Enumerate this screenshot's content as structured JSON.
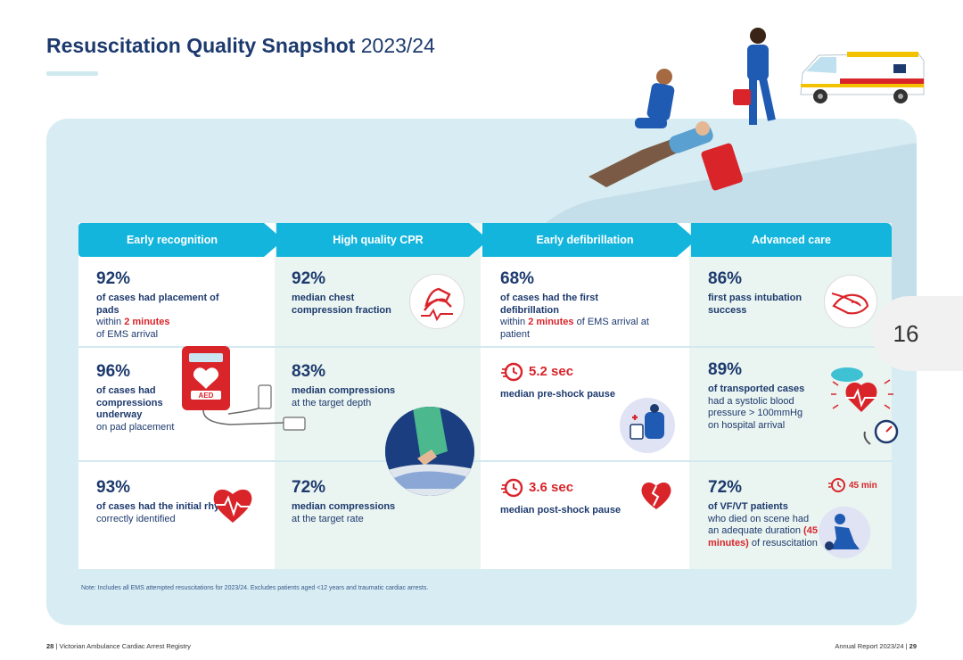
{
  "page_title": {
    "bold": "Resuscitation Quality Snapshot",
    "year": "2023/24"
  },
  "columns": [
    {
      "header": "Early recognition"
    },
    {
      "header": "High quality CPR"
    },
    {
      "header": "Early defibrillation"
    },
    {
      "header": "Advanced care"
    }
  ],
  "cells": {
    "r1c1": {
      "pct": "92%",
      "bold": "of cases had placement of pads",
      "t1": "within ",
      "hl": "2 minutes",
      "t2": "of EMS arrival"
    },
    "r1c2": {
      "pct": "92%",
      "bold": "median chest compression fraction"
    },
    "r1c3": {
      "pct": "68%",
      "bold": "of cases had the first defibrillation",
      "t1": "within ",
      "hl": "2 minutes",
      "t2": " of EMS arrival at patient"
    },
    "r1c4": {
      "pct": "86%",
      "bold": "first pass intubation success"
    },
    "r2c1": {
      "pct": "96%",
      "bold": "of cases had compressions underway",
      "t1": "on pad placement"
    },
    "r2c2": {
      "pct": "83%",
      "bold": "median compressions",
      "t1": "at the target depth"
    },
    "r2c3": {
      "value": "5.2 sec",
      "bold": "median pre-shock pause"
    },
    "r2c4": {
      "pct": "89%",
      "bold": "of transported cases",
      "t1": " had a systolic blood pressure > 100mmHg on hospital arrival"
    },
    "r3c1": {
      "pct": "93%",
      "bold": "of cases had the initial rhythm",
      "t1": "correctly identified"
    },
    "r3c2": {
      "pct": "72%",
      "bold": "median compressions",
      "t1": "at the target rate"
    },
    "r3c3": {
      "value": "3.6 sec",
      "bold": "median post-shock pause"
    },
    "r3c4": {
      "pct": "72%",
      "bold": "of VF/VT patients",
      "t1": "who died on scene had an adequate duration ",
      "hl": "(45 minutes)",
      "t2": " of resuscitation",
      "timer": "45 min"
    }
  },
  "aed_label": "AED",
  "note": "Note: Includes all EMS attempted resuscitations for 2023/24. Excludes patients aged <12 years and traumatic cardiac arrests.",
  "footer": {
    "left_num": "28",
    "left_text": "Victorian Ambulance Cardiac Arrest Registry",
    "right_text": "Annual Report 2023/24",
    "right_num": "29"
  },
  "page_badge": "16",
  "colors": {
    "navy": "#1d3a6e",
    "cyan": "#14b5dc",
    "red": "#d9242a",
    "panel": "#d7ecf3",
    "mint": "#eaf4f0"
  }
}
